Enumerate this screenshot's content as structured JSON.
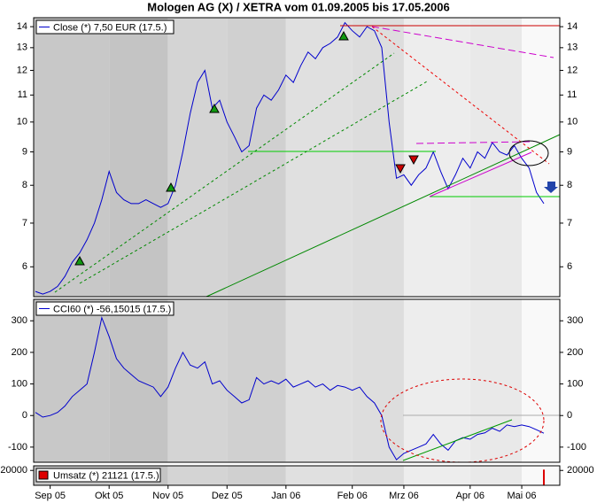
{
  "chart_data": [
    {
      "type": "line",
      "title": "Mologen AG (X) / XETRA vom 01.09.2005 bis 17.05.2006",
      "categories": [
        null,
        null,
        "Sep 05",
        null,
        null,
        null,
        null,
        null,
        null,
        null,
        "Okt 05",
        null,
        null,
        null,
        null,
        null,
        null,
        null,
        "Nov 05",
        null,
        null,
        null,
        null,
        null,
        null,
        null,
        "Dez 05",
        null,
        null,
        null,
        null,
        null,
        null,
        null,
        "Jan 06",
        null,
        null,
        null,
        null,
        null,
        null,
        null,
        null,
        "Feb 06",
        null,
        null,
        null,
        null,
        null,
        null,
        "Mrz 06",
        null,
        null,
        null,
        null,
        null,
        null,
        null,
        null,
        "Apr 06",
        null,
        null,
        null,
        null,
        null,
        null,
        "Mai 06",
        null,
        null,
        null
      ],
      "log": true,
      "ylim": [
        5.4,
        14.45
      ],
      "yticks": [
        6,
        7,
        8,
        9,
        10,
        11,
        12,
        13,
        14
      ],
      "series": [
        {
          "name": "Close (*) 7,50 EUR (17.5.)",
          "color": "#0000cc",
          "values": [
            5.5,
            5.45,
            5.5,
            5.6,
            5.8,
            6.1,
            6.3,
            6.6,
            7.0,
            7.6,
            8.4,
            7.8,
            7.6,
            7.5,
            7.5,
            7.6,
            7.5,
            7.4,
            7.5,
            8.0,
            9.0,
            10.3,
            11.5,
            12.0,
            10.5,
            10.8,
            10.0,
            9.5,
            9.0,
            9.2,
            10.5,
            11.0,
            10.8,
            11.2,
            11.8,
            11.5,
            12.2,
            12.8,
            12.5,
            13.0,
            13.2,
            13.5,
            14.2,
            13.8,
            13.5,
            14.0,
            13.8,
            13.0,
            10.0,
            8.2,
            8.3,
            8.0,
            8.3,
            8.5,
            9.0,
            8.4,
            7.9,
            8.3,
            8.8,
            8.5,
            9.0,
            8.8,
            9.3,
            9.0,
            8.9,
            9.2,
            8.8,
            8.5,
            7.8,
            7.5
          ]
        }
      ]
    },
    {
      "type": "line",
      "ylim": [
        -148,
        368
      ],
      "yticks": [
        -100,
        0,
        100,
        200,
        300
      ],
      "series": [
        {
          "name": "CCI60 (*) -56,15015 (17.5.)",
          "color": "#0000cc",
          "values": [
            10,
            -5,
            0,
            10,
            30,
            60,
            80,
            100,
            200,
            310,
            250,
            180,
            150,
            130,
            110,
            100,
            90,
            60,
            90,
            150,
            200,
            160,
            150,
            170,
            100,
            110,
            80,
            60,
            40,
            50,
            120,
            100,
            110,
            100,
            115,
            90,
            100,
            110,
            90,
            100,
            80,
            95,
            90,
            80,
            90,
            60,
            40,
            0,
            -100,
            -140,
            -120,
            -110,
            -100,
            -90,
            -60,
            -90,
            -110,
            -80,
            -70,
            -75,
            -60,
            -55,
            -40,
            -50,
            -30,
            -35,
            -30,
            -35,
            -45,
            -56
          ]
        }
      ]
    },
    {
      "type": "bar",
      "ylim": [
        0,
        26250
      ],
      "yticks": [
        20000
      ],
      "series": [
        {
          "name": "Umsatz (*) 21121 (17.5.)",
          "color": "#dd0000",
          "values": [
            null,
            null,
            null,
            null,
            null,
            null,
            null,
            null,
            null,
            null,
            null,
            null,
            null,
            null,
            null,
            null,
            null,
            null,
            null,
            null,
            null,
            null,
            null,
            null,
            null,
            null,
            null,
            null,
            null,
            null,
            null,
            null,
            null,
            null,
            null,
            null,
            null,
            null,
            null,
            null,
            null,
            null,
            null,
            null,
            null,
            null,
            null,
            null,
            null,
            null,
            null,
            null,
            null,
            null,
            null,
            null,
            null,
            null,
            null,
            null,
            null,
            null,
            null,
            null,
            null,
            null,
            null,
            null,
            null,
            21121
          ]
        }
      ]
    }
  ]
}
